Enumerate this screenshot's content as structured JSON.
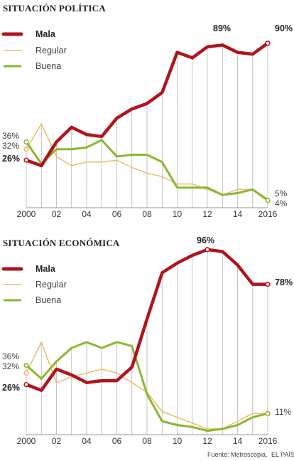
{
  "colors": {
    "mala": "#b0141c",
    "regular": "#e9bc6b",
    "buena": "#8ab830",
    "grid": "#b5b5b5",
    "axis": "#999999"
  },
  "footer": {
    "source": "Fuente: Metroscopia.",
    "brand": "EL PAÍS"
  },
  "chart_data": [
    {
      "type": "line",
      "title": "SITUACIÓN POLÍTICA",
      "x": [
        2000,
        2001,
        2002,
        2003,
        2004,
        2005,
        2006,
        2007,
        2008,
        2009,
        2010,
        2011,
        2012,
        2013,
        2014,
        2015,
        2016
      ],
      "x_tick_labels": [
        "2000",
        "02",
        "04",
        "06",
        "08",
        "10",
        "12",
        "14",
        "2016"
      ],
      "ylim": [
        0,
        100
      ],
      "grid": "vertical lines",
      "legend": "top-left",
      "series": [
        {
          "name": "Mala",
          "values": [
            26,
            23,
            36,
            44,
            40,
            39,
            49,
            54,
            57,
            63,
            85,
            82,
            88,
            89,
            85,
            84,
            90
          ]
        },
        {
          "name": "Regular",
          "values": [
            32,
            46,
            28,
            23,
            25,
            25,
            26,
            22,
            19,
            17,
            13,
            13,
            10,
            7,
            10,
            10,
            5
          ]
        },
        {
          "name": "Buena",
          "values": [
            36,
            24,
            32,
            32,
            33,
            37,
            28,
            29,
            29,
            25,
            11,
            11,
            11,
            7,
            8,
            10,
            4
          ]
        }
      ],
      "start_labels": [
        "36%",
        "32%",
        "26%"
      ],
      "end_labels": [
        "90%",
        "5%",
        "4%"
      ],
      "annotations": [
        "89%"
      ]
    },
    {
      "type": "line",
      "title": "SITUACIÓN ECONÓMICA",
      "x": [
        2000,
        2001,
        2002,
        2003,
        2004,
        2005,
        2006,
        2007,
        2008,
        2009,
        2010,
        2011,
        2012,
        2013,
        2014,
        2015,
        2016
      ],
      "x_tick_labels": [
        "2000",
        "02",
        "04",
        "06",
        "08",
        "10",
        "12",
        "14",
        "2016"
      ],
      "ylim": [
        0,
        100
      ],
      "grid": "vertical lines",
      "legend": "top-left",
      "series": [
        {
          "name": "Mala",
          "values": [
            26,
            23,
            34,
            31,
            27,
            28,
            28,
            35,
            60,
            84,
            89,
            93,
            96,
            95,
            88,
            78,
            78
          ]
        },
        {
          "name": "Regular",
          "values": [
            32,
            48,
            27,
            30,
            32,
            34,
            32,
            27,
            22,
            12,
            9,
            6,
            3,
            3,
            7,
            11,
            11
          ]
        },
        {
          "name": "Buena",
          "values": [
            36,
            29,
            38,
            45,
            48,
            45,
            48,
            46,
            21,
            7,
            5,
            4,
            2,
            3,
            5,
            9,
            11
          ]
        }
      ],
      "start_labels": [
        "36%",
        "32%",
        "26%"
      ],
      "end_labels": [
        "78%",
        "11%"
      ],
      "annotations": [
        "96%"
      ]
    }
  ]
}
